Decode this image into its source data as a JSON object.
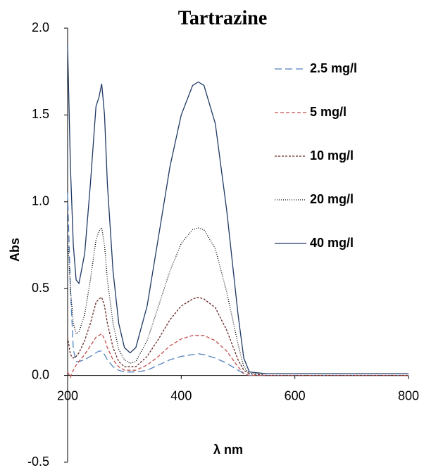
{
  "chart_data": {
    "type": "line",
    "title": "Tartrazine",
    "x_label": "λ nm",
    "y_label": "Abs",
    "x": [
      200,
      205,
      210,
      215,
      220,
      230,
      240,
      250,
      255,
      260,
      265,
      270,
      280,
      290,
      300,
      310,
      320,
      340,
      360,
      380,
      400,
      420,
      430,
      440,
      460,
      480,
      500,
      510,
      520,
      550,
      600,
      700,
      800
    ],
    "series": [
      {
        "name": "2.5 mg/l",
        "color": "#4f81bd",
        "dash": "10 5",
        "values": [
          1.05,
          0.5,
          0.15,
          0.08,
          0.08,
          0.09,
          0.11,
          0.13,
          0.14,
          0.14,
          0.12,
          0.09,
          0.05,
          0.03,
          0.02,
          0.02,
          0.02,
          0.03,
          0.06,
          0.09,
          0.11,
          0.12,
          0.125,
          0.12,
          0.1,
          0.07,
          0.03,
          0.01,
          0,
          0,
          0,
          0,
          0
        ]
      },
      {
        "name": "5 mg/l",
        "color": "#c0504d",
        "dash": "5 3",
        "values": [
          0.02,
          -0.01,
          0.03,
          0.06,
          0.08,
          0.12,
          0.17,
          0.22,
          0.23,
          0.24,
          0.21,
          0.16,
          0.09,
          0.05,
          0.03,
          0.03,
          0.03,
          0.06,
          0.11,
          0.17,
          0.21,
          0.23,
          0.23,
          0.23,
          0.2,
          0.14,
          0.05,
          0.01,
          0,
          0,
          0,
          0,
          0
        ]
      },
      {
        "name": "10 mg/l",
        "color": "#632523",
        "dash": "3 2",
        "values": [
          0.22,
          0.12,
          0.1,
          0.11,
          0.13,
          0.2,
          0.3,
          0.42,
          0.44,
          0.45,
          0.4,
          0.3,
          0.16,
          0.08,
          0.05,
          0.05,
          0.05,
          0.11,
          0.21,
          0.32,
          0.4,
          0.44,
          0.45,
          0.44,
          0.39,
          0.26,
          0.09,
          0.03,
          0.01,
          0,
          0,
          0,
          0
        ]
      },
      {
        "name": "20 mg/l",
        "color": "#000000",
        "dash": "1 2",
        "values": [
          0.8,
          0.5,
          0.3,
          0.24,
          0.25,
          0.35,
          0.55,
          0.78,
          0.83,
          0.85,
          0.75,
          0.55,
          0.3,
          0.15,
          0.09,
          0.07,
          0.08,
          0.2,
          0.4,
          0.6,
          0.76,
          0.84,
          0.85,
          0.84,
          0.73,
          0.48,
          0.18,
          0.05,
          0.01,
          0.01,
          0.01,
          0.01,
          0.01
        ]
      },
      {
        "name": "40 mg/l",
        "color": "#1f3864",
        "dash": "none",
        "values": [
          1.9,
          1.2,
          0.75,
          0.55,
          0.53,
          0.7,
          1.1,
          1.55,
          1.6,
          1.68,
          1.5,
          1.1,
          0.6,
          0.3,
          0.16,
          0.13,
          0.16,
          0.4,
          0.8,
          1.2,
          1.5,
          1.67,
          1.69,
          1.67,
          1.45,
          0.95,
          0.35,
          0.1,
          0.02,
          0.01,
          0.01,
          0.01,
          0.01
        ]
      }
    ],
    "xlim": [
      200,
      800
    ],
    "xticks": [
      200,
      400,
      600,
      800
    ],
    "ylim": [
      -0.5,
      2.0
    ],
    "yticks": [
      {
        "value": 2.0,
        "label": "2.0"
      },
      {
        "value": 1.5,
        "label": "1.5"
      },
      {
        "value": 1.0,
        "label": "1.0"
      },
      {
        "value": 0.5,
        "label": "0.5"
      },
      {
        "value": 0,
        "label": "0.0"
      },
      {
        "value": -0.5,
        "label": "-0.5"
      }
    ],
    "grid": false,
    "legend": "right"
  }
}
